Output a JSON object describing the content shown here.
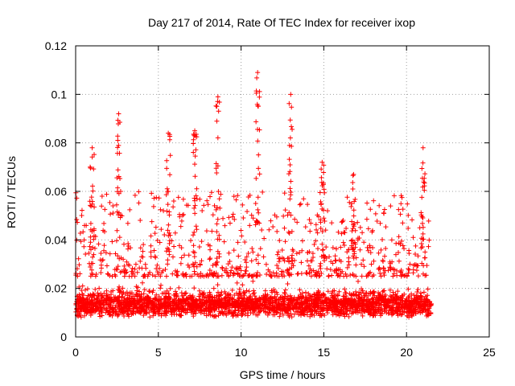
{
  "chart_data": {
    "type": "scatter",
    "title": "Day 217 of 2014, Rate Of TEC Index for receiver ixop",
    "xlabel": "GPS time / hours",
    "ylabel": "ROTI / TECUs",
    "xlim": [
      0,
      25
    ],
    "ylim": [
      0,
      0.12
    ],
    "x_ticks": [
      0,
      5,
      10,
      15,
      20,
      25
    ],
    "x_tick_labels": [
      "0",
      "5",
      "10",
      "15",
      "20",
      "25"
    ],
    "y_ticks": [
      0,
      0.02,
      0.04,
      0.06,
      0.08,
      0.1,
      0.12
    ],
    "y_tick_labels": [
      "0",
      "0.02",
      "0.04",
      "0.06",
      "0.08",
      "0.1",
      "0.12"
    ],
    "grid": true,
    "marker": "+",
    "color": "#ff0000",
    "series": [
      {
        "name": "ROTI",
        "x_range": [
          0,
          21.5
        ],
        "typical_range": [
          0.005,
          0.035
        ],
        "notable_peaks": [
          {
            "x": 1.0,
            "y": 0.078
          },
          {
            "x": 2.6,
            "y": 0.092
          },
          {
            "x": 5.6,
            "y": 0.084
          },
          {
            "x": 7.2,
            "y": 0.085
          },
          {
            "x": 8.6,
            "y": 0.099
          },
          {
            "x": 11.0,
            "y": 0.109
          },
          {
            "x": 13.0,
            "y": 0.1
          },
          {
            "x": 14.9,
            "y": 0.072
          },
          {
            "x": 16.8,
            "y": 0.067
          },
          {
            "x": 21.0,
            "y": 0.078
          }
        ]
      }
    ]
  }
}
